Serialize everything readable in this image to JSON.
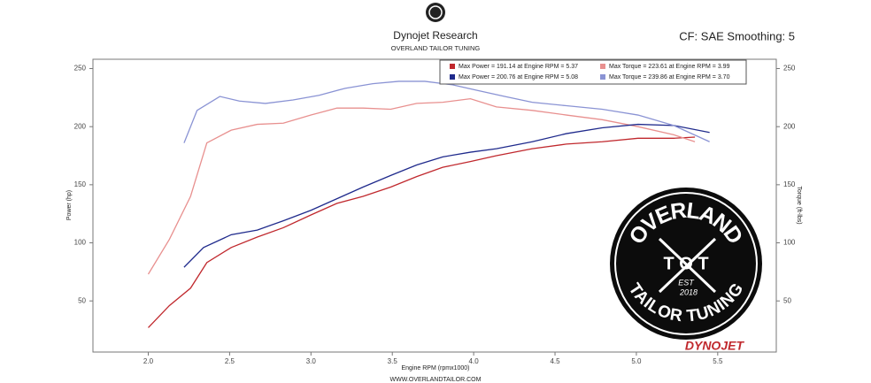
{
  "chart_data": {
    "type": "line",
    "title": "Dynojet Research",
    "subtitle": "OVERLAND TAILOR TUNING",
    "settings_text": "CF: SAE Smoothing: 5",
    "x_label": "Engine RPM (rpmx1000)",
    "y_label": "Power (hp)",
    "y2_label": "Torque (ft-lbs)",
    "footer": "WWW.OVERLANDTAILOR.COM",
    "brand": "DYNOJET",
    "logo": {
      "top": "OVERLAND",
      "bottom": "TAILOR TUNING",
      "letters": "T O T",
      "est": "EST",
      "year": "2018"
    },
    "xlim": [
      1.66,
      5.86
    ],
    "xticks": [
      {
        "value": 2,
        "label": "2.0"
      },
      2.5,
      {
        "value": 3,
        "label": "3.0"
      },
      3.5,
      {
        "value": 4,
        "label": "4.0"
      },
      4.5,
      {
        "value": 5,
        "label": "5.0"
      },
      5.5
    ],
    "ylim": [
      6,
      258
    ],
    "yticks": [
      50,
      100,
      150,
      200,
      250
    ],
    "y2lim": [
      6,
      258
    ],
    "y2ticks": [
      50,
      100,
      150,
      200,
      250
    ],
    "series": [
      {
        "name": "Max Power = 191.14 at Engine RPM = 5.37",
        "color": "#c0282d",
        "x": [
          2.0,
          2.13,
          2.26,
          2.36,
          2.51,
          2.67,
          2.83,
          3.0,
          3.16,
          3.32,
          3.49,
          3.65,
          3.81,
          3.98,
          4.14,
          4.36,
          4.57,
          4.79,
          5.01,
          5.23,
          5.36
        ],
        "values": [
          27,
          46,
          61,
          83,
          96,
          105,
          113,
          124,
          134,
          140,
          148,
          157,
          165,
          170,
          175,
          181,
          185,
          187,
          190,
          190,
          191
        ]
      },
      {
        "name": "Max Torque = 223.61 at Engine RPM = 3.99",
        "color": "#e8908f",
        "axis": "y2",
        "x": [
          2.0,
          2.13,
          2.26,
          2.36,
          2.51,
          2.67,
          2.83,
          3.0,
          3.16,
          3.32,
          3.49,
          3.65,
          3.81,
          3.98,
          4.14,
          4.36,
          4.57,
          4.79,
          5.01,
          5.23,
          5.36
        ],
        "values": [
          73,
          103,
          140,
          186,
          197,
          202,
          203,
          210,
          216,
          216,
          215,
          220,
          221,
          224,
          217,
          214,
          210,
          206,
          200,
          193,
          187
        ]
      },
      {
        "name": "Max Power = 200.76 at Engine RPM = 5.08",
        "color": "#1f2a8c",
        "x": [
          2.22,
          2.34,
          2.51,
          2.67,
          2.83,
          3.0,
          3.16,
          3.32,
          3.49,
          3.65,
          3.81,
          3.98,
          4.14,
          4.36,
          4.57,
          4.79,
          5.01,
          5.23,
          5.45
        ],
        "values": [
          79,
          96,
          107,
          111,
          119,
          128,
          138,
          148,
          158,
          167,
          174,
          178,
          181,
          187,
          194,
          199,
          202,
          201,
          195
        ]
      },
      {
        "name": "Max Torque = 239.86 at Engine RPM = 3.70",
        "color": "#8a93d4",
        "axis": "y2",
        "x": [
          2.22,
          2.3,
          2.44,
          2.56,
          2.72,
          2.89,
          3.05,
          3.21,
          3.38,
          3.54,
          3.7,
          3.87,
          4.03,
          4.19,
          4.36,
          4.57,
          4.79,
          5.01,
          5.23,
          5.45
        ],
        "values": [
          186,
          214,
          226,
          222,
          220,
          223,
          227,
          233,
          237,
          239,
          239,
          236,
          231,
          226,
          221,
          218,
          215,
          210,
          201,
          187
        ]
      }
    ]
  }
}
